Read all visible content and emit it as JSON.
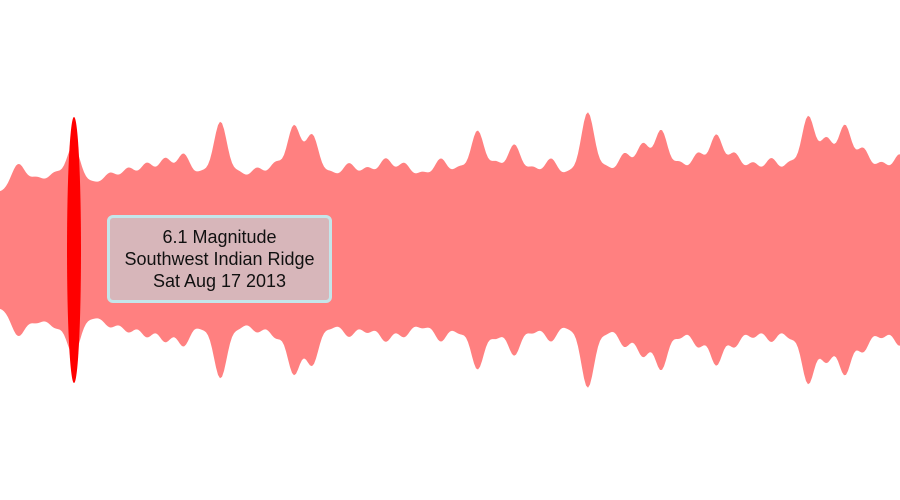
{
  "colors": {
    "wave": "#ff8080",
    "highlight": "#ff0000",
    "tooltip_bg": "#d6b8bc",
    "tooltip_border": "#c4e6ea",
    "background": "#ffffff"
  },
  "tooltip": {
    "magnitude": "6.1 Magnitude",
    "location": "Southwest Indian Ridge",
    "date": "Sat Aug 17 2013"
  },
  "chart_data": {
    "type": "area",
    "baseline_amplitude": 5.6,
    "ylim": [
      -6.5,
      6.5
    ],
    "highlighted": {
      "magnitude": 6.1,
      "location": "Southwest Indian Ridge",
      "date": "Sat Aug 17 2013"
    },
    "events": [
      {
        "i": 0,
        "mag": 5.6
      },
      {
        "i": 1,
        "mag": 5.9
      },
      {
        "i": 2,
        "mag": 5.75
      },
      {
        "i": 3,
        "mag": 5.8
      },
      {
        "i": 4,
        "mag": 6.1
      },
      {
        "i": 5,
        "mag": 5.7
      },
      {
        "i": 6,
        "mag": 5.8
      },
      {
        "i": 7,
        "mag": 5.85
      },
      {
        "i": 8,
        "mag": 5.9
      },
      {
        "i": 9,
        "mag": 5.95
      },
      {
        "i": 10,
        "mag": 6.0
      },
      {
        "i": 11,
        "mag": 5.8
      },
      {
        "i": 12,
        "mag": 6.35
      },
      {
        "i": 13,
        "mag": 5.8
      },
      {
        "i": 14,
        "mag": 5.85
      },
      {
        "i": 15,
        "mag": 5.9
      },
      {
        "i": 16,
        "mag": 6.3
      },
      {
        "i": 17,
        "mag": 6.2
      },
      {
        "i": 18,
        "mag": 5.8
      },
      {
        "i": 19,
        "mag": 5.9
      },
      {
        "i": 20,
        "mag": 5.85
      },
      {
        "i": 21,
        "mag": 5.95
      },
      {
        "i": 22,
        "mag": 5.9
      },
      {
        "i": 23,
        "mag": 5.8
      },
      {
        "i": 24,
        "mag": 5.95
      },
      {
        "i": 25,
        "mag": 5.85
      },
      {
        "i": 26,
        "mag": 6.25
      },
      {
        "i": 27,
        "mag": 5.9
      },
      {
        "i": 28,
        "mag": 6.1
      },
      {
        "i": 29,
        "mag": 5.85
      },
      {
        "i": 30,
        "mag": 5.95
      },
      {
        "i": 31,
        "mag": 5.8
      },
      {
        "i": 32,
        "mag": 6.45
      },
      {
        "i": 33,
        "mag": 5.85
      },
      {
        "i": 34,
        "mag": 6.0
      },
      {
        "i": 35,
        "mag": 6.1
      },
      {
        "i": 36,
        "mag": 6.25
      },
      {
        "i": 37,
        "mag": 5.9
      },
      {
        "i": 38,
        "mag": 6.0
      },
      {
        "i": 39,
        "mag": 6.2
      },
      {
        "i": 40,
        "mag": 6.0
      },
      {
        "i": 41,
        "mag": 5.9
      },
      {
        "i": 42,
        "mag": 5.95
      },
      {
        "i": 43,
        "mag": 5.9
      },
      {
        "i": 44,
        "mag": 6.4
      },
      {
        "i": 45,
        "mag": 6.15
      },
      {
        "i": 46,
        "mag": 6.3
      },
      {
        "i": 47,
        "mag": 6.05
      },
      {
        "i": 48,
        "mag": 5.9
      },
      {
        "i": 49,
        "mag": 6.0
      }
    ]
  }
}
